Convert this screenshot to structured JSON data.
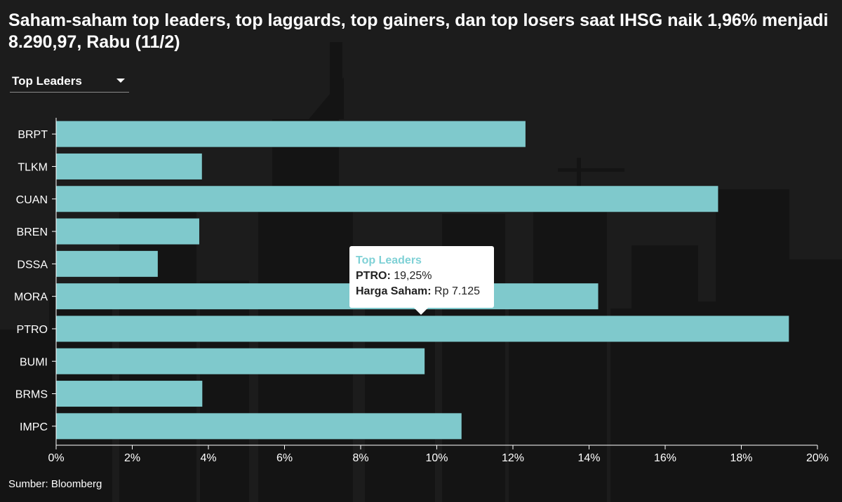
{
  "title": "Saham-saham top leaders, top laggards, top gainers, dan top losers saat IHSG naik 1,96% menjadi 8.290,97, Rabu (11/2)",
  "dropdown": {
    "selected": "Top Leaders"
  },
  "source": "Sumber: Bloomberg",
  "colors": {
    "bar": "#7fc9cc",
    "background": "#1c1c1c",
    "text": "#ffffff",
    "tooltip_title": "#7fd1d6"
  },
  "tooltip": {
    "title": "Top Leaders",
    "row1_label": "PTRO:",
    "row1_value": "19,25%",
    "row2_label": "Harga Saham:",
    "row2_value": "Rp 7.125"
  },
  "chart_data": {
    "type": "bar",
    "orientation": "horizontal",
    "categories": [
      "BRPT",
      "TLKM",
      "CUAN",
      "BREN",
      "DSSA",
      "MORA",
      "PTRO",
      "BUMI",
      "BRMS",
      "IMPC"
    ],
    "values": [
      12.33,
      3.83,
      17.39,
      3.76,
      2.67,
      14.24,
      19.25,
      9.68,
      3.84,
      10.65
    ],
    "xlim": [
      0,
      20
    ],
    "xticks": [
      0,
      2,
      4,
      6,
      8,
      10,
      12,
      14,
      16,
      18,
      20
    ],
    "xtick_labels": [
      "0%",
      "2%",
      "4%",
      "6%",
      "8%",
      "10%",
      "12%",
      "14%",
      "16%",
      "18%",
      "20%"
    ],
    "grid": false
  }
}
